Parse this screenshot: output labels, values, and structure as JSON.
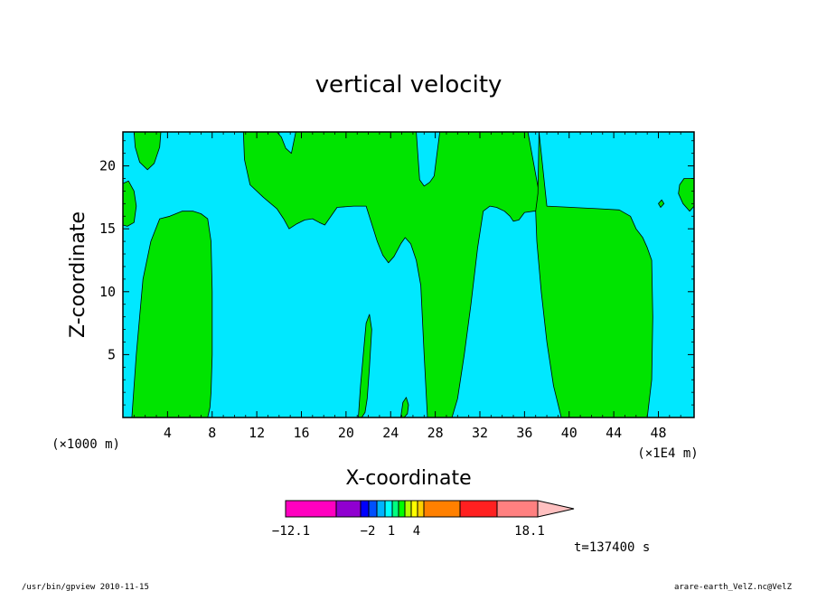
{
  "footer": {
    "left": "/usr/bin/gpview  2010-11-15",
    "right": "arare-earth_VelZ.nc@VelZ"
  },
  "chart_data": {
    "type": "contour",
    "title": "vertical velocity",
    "xlabel": "X-coordinate",
    "ylabel": "Z-coordinate",
    "x_scale_note": "(×1000 m)",
    "x_unit_note": "(×1E4 m)",
    "xlim": [
      0,
      51.2
    ],
    "ylim": [
      0,
      22.7
    ],
    "x_ticks": [
      4,
      8,
      12,
      16,
      20,
      24,
      28,
      32,
      36,
      40,
      44,
      48
    ],
    "y_ticks": [
      5,
      10,
      15,
      20
    ],
    "time_label": "t=137400 s",
    "background_level_color": "#00e8ff",
    "positive_region_color": "#00e400",
    "regions": [
      {
        "name": "lower-left-updraft",
        "color": "#00e400",
        "outline_x": [
          0.8,
          1.2,
          1.8,
          2.5,
          3.3,
          4.2,
          5.3,
          6.3,
          7.0,
          7.6,
          7.9,
          8.0,
          8.0,
          7.9,
          7.8,
          7.6
        ],
        "outline_y": [
          0.0,
          5.0,
          11.0,
          14.0,
          15.8,
          16.0,
          16.4,
          16.4,
          16.2,
          15.8,
          14.0,
          10.0,
          5.0,
          2.0,
          0.8,
          0.0
        ]
      },
      {
        "name": "upper-left-tongue",
        "color": "#00e400",
        "outline_x": [
          1.0,
          1.1,
          1.5,
          2.2,
          2.8,
          3.3,
          3.4
        ],
        "outline_y": [
          22.7,
          21.5,
          20.3,
          19.7,
          20.2,
          21.5,
          22.7
        ]
      },
      {
        "name": "left-edge-patch",
        "color": "#00e400",
        "outline_x": [
          0.0,
          0.5,
          1.0,
          1.2,
          1.0,
          0.4,
          0.0
        ],
        "outline_y": [
          18.6,
          18.8,
          18.0,
          16.8,
          15.5,
          15.2,
          15.3
        ]
      },
      {
        "name": "upper-central-shelf",
        "color": "#00e400",
        "outline_x": [
          10.8,
          10.9,
          11.4,
          12.6,
          13.8,
          14.4,
          14.9,
          15.6,
          16.3,
          17.0,
          17.6,
          18.1,
          19.2,
          20.7,
          21.8,
          22.3,
          22.8,
          23.3,
          23.8,
          24.3,
          24.9,
          25.3,
          25.8,
          26.3,
          26.7,
          27.0,
          27.3,
          27.8,
          28.4,
          29.0,
          29.5,
          30.0,
          30.6,
          31.2,
          31.8,
          32.3,
          32.9,
          33.5,
          34.2,
          34.7,
          35.0,
          35.5,
          36.0,
          36.8,
          37.1,
          37.5,
          36.3,
          33.9,
          33.7,
          33.3,
          31.8,
          30.9,
          30.1,
          29.3,
          28.9,
          28.4,
          27.9,
          27.5,
          27.0,
          26.6,
          26.3,
          25.5,
          25.1,
          24.2,
          22.8,
          20.9,
          19.3,
          17.8,
          16.6,
          15.5,
          15.1,
          14.6,
          14.2,
          13.8,
          13.5,
          13.2,
          12.5,
          11.5,
          10.8
        ],
        "outline_y": [
          22.7,
          20.5,
          18.5,
          17.5,
          16.6,
          15.8,
          15.0,
          15.4,
          15.7,
          15.8,
          15.5,
          15.3,
          16.7,
          16.8,
          16.8,
          15.4,
          14.0,
          12.9,
          12.3,
          12.8,
          13.8,
          14.3,
          13.8,
          12.5,
          10.5,
          5.0,
          0.0,
          0.0,
          0.0,
          0.0,
          0.0,
          1.5,
          5.0,
          9.0,
          13.5,
          16.4,
          16.8,
          16.7,
          16.4,
          16.0,
          15.6,
          15.7,
          16.3,
          16.4,
          16.4,
          16.9,
          22.7,
          22.7,
          22.7,
          22.7,
          22.7,
          22.7,
          22.7,
          22.7,
          22.7,
          22.7,
          19.2,
          18.7,
          18.4,
          18.9,
          22.7,
          22.7,
          22.7,
          22.7,
          22.7,
          22.7,
          22.7,
          22.7,
          22.7,
          22.7,
          21.0,
          21.4,
          22.3,
          22.7,
          22.7,
          22.7,
          22.7,
          22.7,
          22.7
        ]
      },
      {
        "name": "right-updraft",
        "color": "#00e400",
        "outline_x": [
          37.3,
          37.2,
          37.0,
          37.1,
          37.5,
          38.0,
          38.6,
          39.3,
          40.3,
          41.3,
          42.0,
          43.1,
          43.8,
          44.3,
          44.8,
          45.6,
          46.4,
          47.0,
          47.4,
          47.5,
          47.4,
          47.0,
          46.6,
          46.0,
          45.5,
          44.5,
          42.5,
          38.0
        ],
        "outline_y": [
          22.7,
          17.8,
          16.4,
          14.0,
          10.0,
          6.0,
          2.5,
          0.0,
          0.0,
          0.0,
          0.0,
          0.0,
          0.0,
          0.0,
          0.0,
          0.0,
          0.0,
          0.0,
          3.0,
          8.0,
          12.5,
          13.5,
          14.3,
          15.0,
          16.0,
          16.5,
          16.6,
          16.8
        ]
      },
      {
        "name": "small-central-filament",
        "color": "#00e400",
        "outline_x": [
          21.1,
          21.3,
          21.6,
          21.8,
          22.1,
          22.3,
          22.1,
          21.9,
          21.7,
          21.4,
          21.1
        ],
        "outline_y": [
          0.0,
          2.5,
          5.5,
          7.5,
          8.2,
          7.0,
          4.0,
          1.5,
          0.4,
          0.0,
          0.0
        ]
      },
      {
        "name": "small-bottom-plume",
        "color": "#00e400",
        "outline_x": [
          24.9,
          25.1,
          25.4,
          25.6,
          25.5,
          25.2,
          24.9
        ],
        "outline_y": [
          0.0,
          1.2,
          1.6,
          1.0,
          0.3,
          0.0,
          0.0
        ]
      },
      {
        "name": "right-upper-tongue",
        "color": "#00e400",
        "outline_x": [
          50.8,
          51.2,
          51.2,
          50.8,
          50.2,
          49.8,
          49.9,
          50.3
        ],
        "outline_y": [
          19.0,
          19.0,
          16.8,
          16.4,
          17.0,
          17.8,
          18.5,
          19.0
        ]
      },
      {
        "name": "right-small-dot",
        "color": "#00e400",
        "outline_x": [
          48.0,
          48.3,
          48.5,
          48.2,
          48.0
        ],
        "outline_y": [
          17.0,
          17.3,
          17.0,
          16.7,
          17.0
        ]
      }
    ],
    "colorbar": {
      "colors": [
        "#ff00c0",
        "#9000d0",
        "#0000ff",
        "#0050ff",
        "#00b4ff",
        "#00ffff",
        "#00ff80",
        "#00ff00",
        "#b4ff00",
        "#ffff00",
        "#ffd000",
        "#ff8000",
        "#ff2020",
        "#ff8080",
        "#ffc0c0"
      ],
      "tick_labels": [
        "−12.1",
        "−2",
        "1",
        "4",
        "18.1"
      ]
    }
  }
}
